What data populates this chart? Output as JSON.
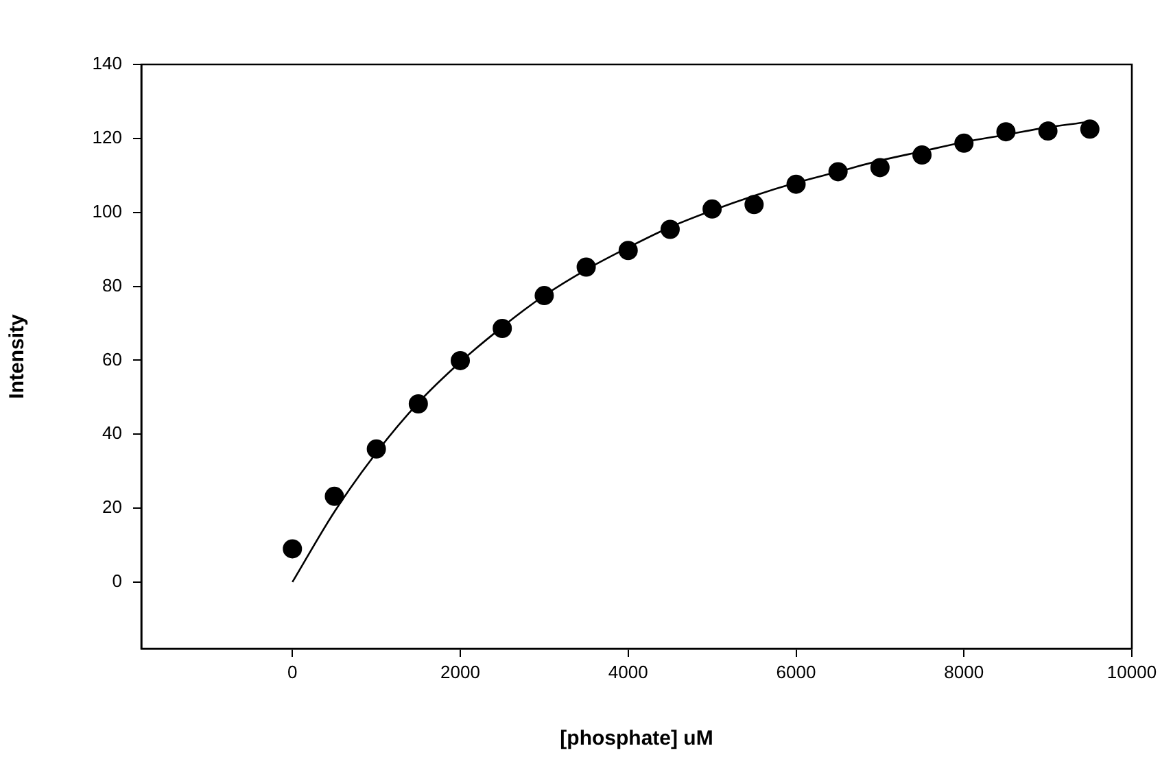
{
  "chart_data": {
    "type": "scatter",
    "xlabel": "[phosphate] uM",
    "ylabel": "Intensity",
    "xlim": [
      -1800,
      10000
    ],
    "xticks": [
      0,
      2000,
      4000,
      6000,
      8000,
      10000
    ],
    "ylim": [
      -18,
      140
    ],
    "yticks": [
      0,
      20,
      40,
      60,
      80,
      100,
      120,
      140
    ],
    "grid": false,
    "legend": false,
    "marker": "circle",
    "series": [
      {
        "type": "scatter",
        "color": "#000000",
        "x": [
          0,
          500,
          1000,
          1500,
          2000,
          2500,
          3000,
          3500,
          4000,
          4500,
          5000,
          5500,
          6000,
          6500,
          7000,
          7500,
          8000,
          8500,
          9000,
          9500
        ],
        "values": [
          9,
          23.2,
          36,
          48.2,
          59.9,
          68.6,
          77.5,
          85.2,
          89.7,
          95.4,
          100.9,
          102.1,
          107.6,
          111,
          112.1,
          115.5,
          118.7,
          121.8,
          122,
          122.5
        ]
      },
      {
        "type": "line",
        "color": "#000000",
        "marker": "none",
        "line_style": "solid",
        "x": [
          0,
          500,
          1000,
          1500,
          2000,
          2500,
          3000,
          3500,
          4000,
          4500,
          5000,
          5500,
          6000,
          6500,
          7000,
          7500,
          8000,
          8500,
          9000,
          9500
        ],
        "values": [
          0,
          19,
          35,
          48.5,
          59.5,
          69,
          77.5,
          84.5,
          90.5,
          96,
          100.5,
          104.5,
          108,
          111,
          114,
          116.5,
          119,
          121,
          123,
          124.5
        ]
      }
    ]
  }
}
